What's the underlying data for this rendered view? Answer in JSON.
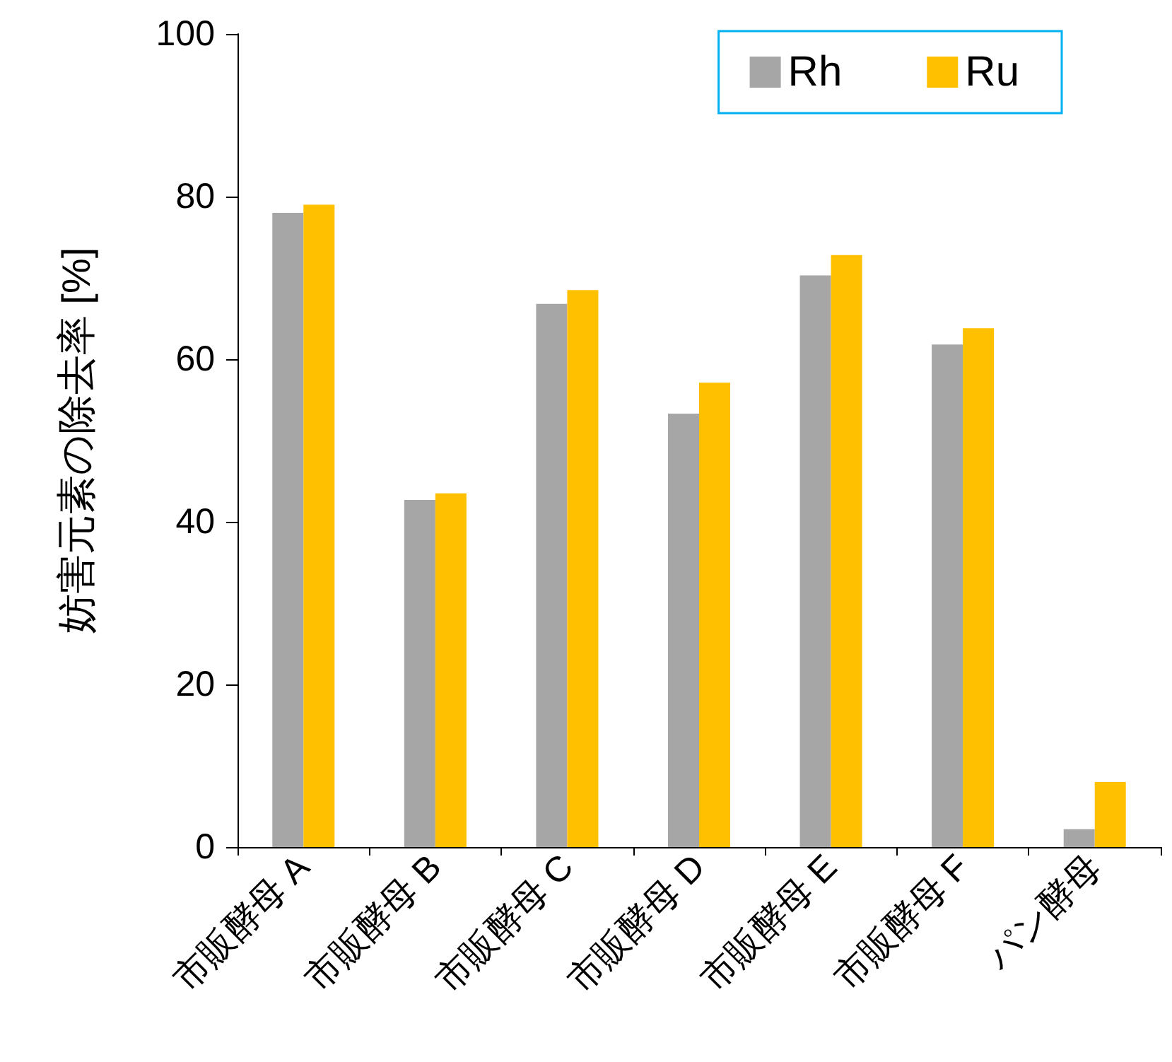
{
  "chart_data": {
    "type": "bar",
    "ylabel": "妨害元素の除去率 [%]",
    "categories": [
      "市販酵母 A",
      "市販酵母 B",
      "市販酵母 C",
      "市販酵母 D",
      "市販酵母 E",
      "市販酵母 F",
      "パン酵母"
    ],
    "series": [
      {
        "name": "Rh",
        "color": "#a6a6a6",
        "values": [
          78,
          42.7,
          66.8,
          53.3,
          70.3,
          61.8,
          2.2
        ]
      },
      {
        "name": "Ru",
        "color": "#ffc000",
        "values": [
          79,
          43.5,
          68.5,
          57.1,
          72.8,
          63.8,
          8.0
        ]
      }
    ],
    "ylim": [
      0,
      100
    ],
    "yticks": [
      0,
      20,
      40,
      60,
      80,
      100
    ],
    "grid": false,
    "legend": "top right"
  }
}
